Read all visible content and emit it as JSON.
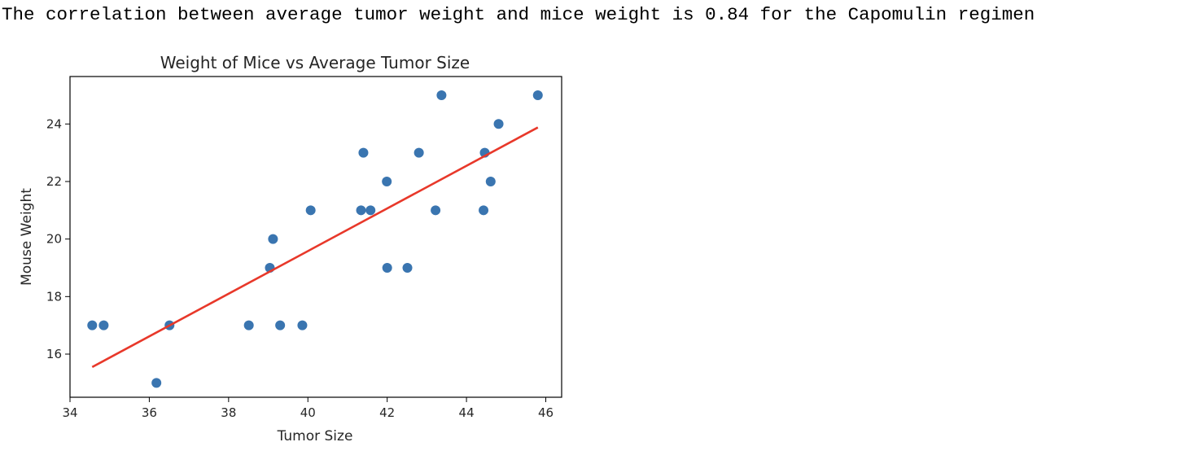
{
  "output": {
    "correlation_text": "The correlation between average tumor weight and mice weight is 0.84 for the Capomulin regimen"
  },
  "chart_data": {
    "type": "scatter",
    "title": "Weight of Mice vs Average Tumor Size",
    "xlabel": "Tumor Size",
    "ylabel": "Mouse Weight",
    "xlim": [
      34.0,
      46.4
    ],
    "ylim": [
      14.5,
      25.65
    ],
    "xticks": [
      34,
      36,
      38,
      40,
      42,
      44,
      46
    ],
    "yticks": [
      16,
      18,
      20,
      22,
      24
    ],
    "grid": false,
    "colors": {
      "points": "#3a75b0",
      "regression": "#e8382a",
      "axes": "#000000"
    },
    "points": [
      {
        "x": 34.56,
        "y": 17
      },
      {
        "x": 34.85,
        "y": 17
      },
      {
        "x": 36.18,
        "y": 15
      },
      {
        "x": 36.51,
        "y": 17
      },
      {
        "x": 38.51,
        "y": 17
      },
      {
        "x": 39.04,
        "y": 19
      },
      {
        "x": 39.12,
        "y": 20
      },
      {
        "x": 39.3,
        "y": 17
      },
      {
        "x": 39.86,
        "y": 17
      },
      {
        "x": 40.07,
        "y": 21
      },
      {
        "x": 41.34,
        "y": 21
      },
      {
        "x": 41.4,
        "y": 23
      },
      {
        "x": 41.58,
        "y": 21
      },
      {
        "x": 41.99,
        "y": 22
      },
      {
        "x": 42.0,
        "y": 19
      },
      {
        "x": 42.51,
        "y": 19
      },
      {
        "x": 42.8,
        "y": 23
      },
      {
        "x": 43.22,
        "y": 21
      },
      {
        "x": 43.37,
        "y": 25
      },
      {
        "x": 44.43,
        "y": 21
      },
      {
        "x": 44.46,
        "y": 23
      },
      {
        "x": 44.61,
        "y": 22
      },
      {
        "x": 44.81,
        "y": 24
      },
      {
        "x": 45.8,
        "y": 25
      }
    ],
    "regression_line": {
      "x": [
        34.56,
        45.8
      ],
      "y": [
        15.55,
        23.88
      ]
    }
  }
}
